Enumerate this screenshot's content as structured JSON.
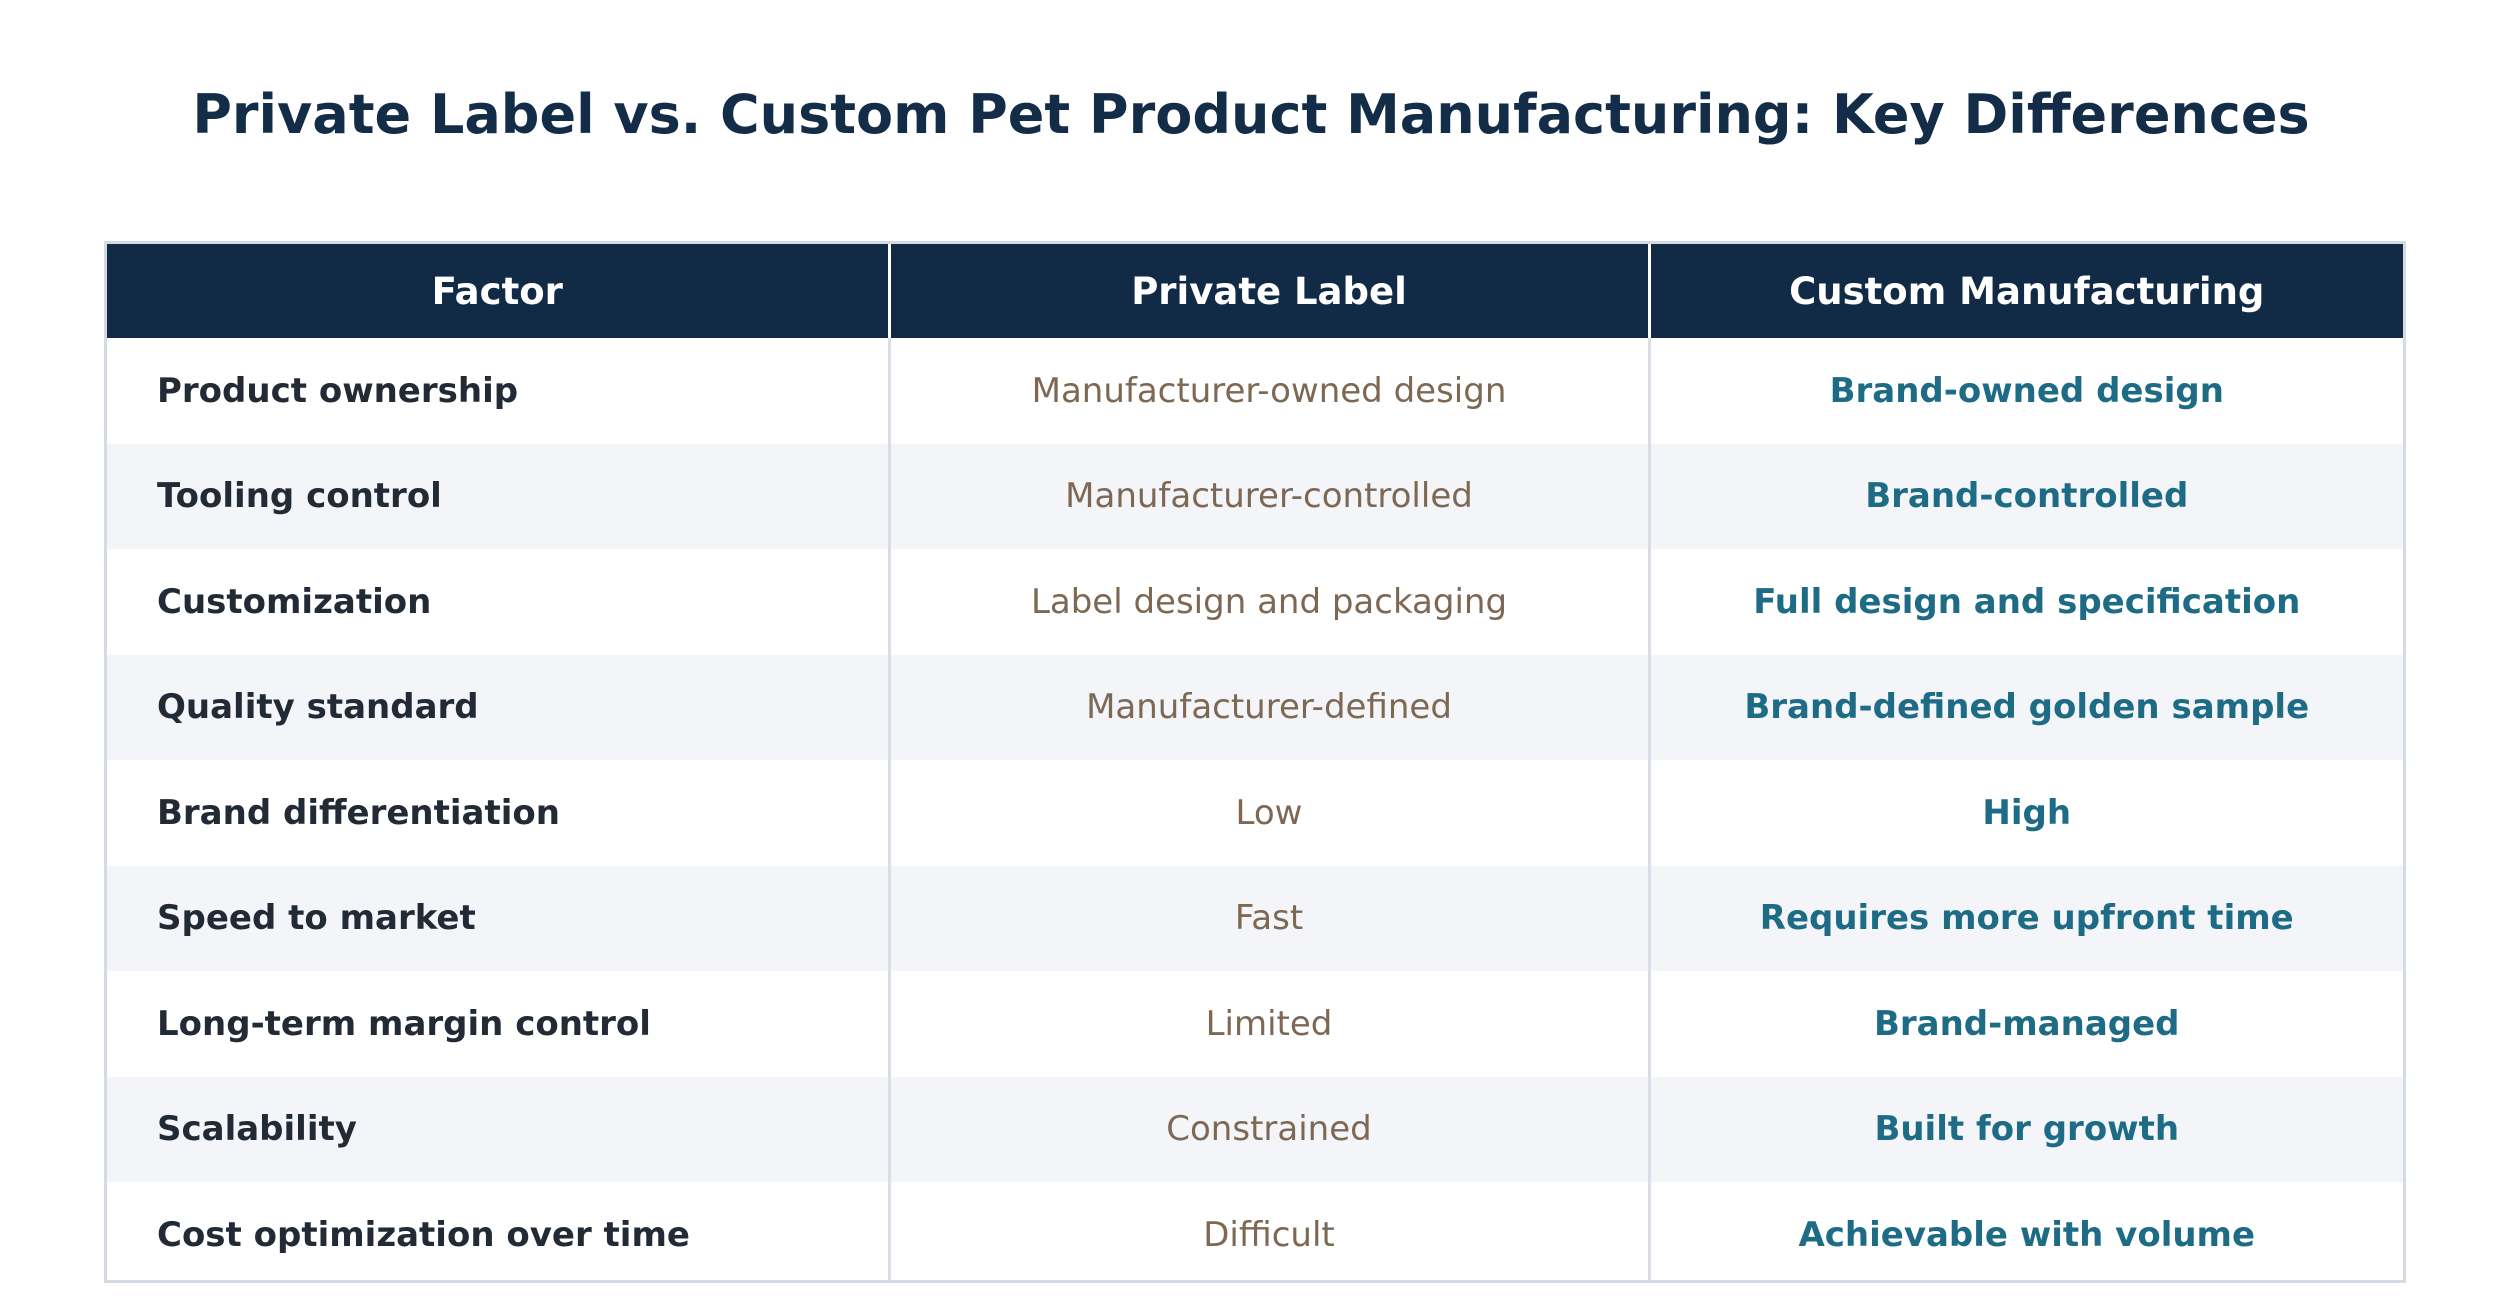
{
  "title": "Private Label vs. Custom Pet Product Manufacturing: Key Differences",
  "colors": {
    "header_bg": "#112b46",
    "title": "#132c47",
    "factor_text": "#222a36",
    "private_text": "#7d6854",
    "custom_text": "#1e6b86",
    "row_alt_bg": "#f4f5f9"
  },
  "table": {
    "headers": [
      "Factor",
      "Private Label",
      "Custom Manufacturing"
    ],
    "rows": [
      {
        "factor": "Product ownership",
        "private": "Manufacturer-owned design",
        "custom": "Brand-owned design"
      },
      {
        "factor": "Tooling control",
        "private": "Manufacturer-controlled",
        "custom": "Brand-controlled"
      },
      {
        "factor": "Customization",
        "private": "Label design and packaging",
        "custom": "Full design and specification"
      },
      {
        "factor": "Quality standard",
        "private": "Manufacturer-defined",
        "custom": "Brand-defined golden sample"
      },
      {
        "factor": "Brand differentiation",
        "private": "Low",
        "custom": "High"
      },
      {
        "factor": "Speed to market",
        "private": "Fast",
        "custom": "Requires more upfront time"
      },
      {
        "factor": "Long-term margin control",
        "private": "Limited",
        "custom": "Brand-managed"
      },
      {
        "factor": "Scalability",
        "private": "Constrained",
        "custom": "Built for growth"
      },
      {
        "factor": "Cost optimization over time",
        "private": "Difficult",
        "custom": "Achievable with volume"
      }
    ]
  }
}
